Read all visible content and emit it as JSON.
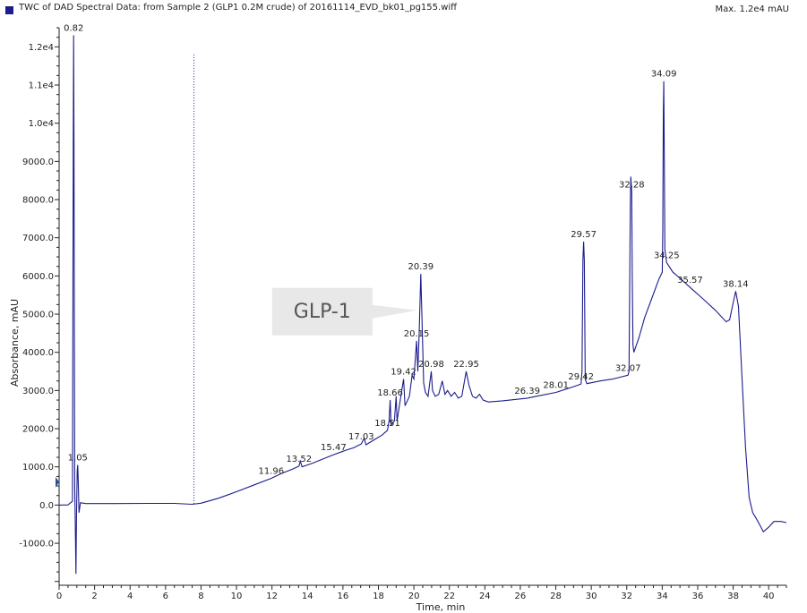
{
  "header": {
    "title": "TWC of DAD Spectral Data: from Sample 2 (GLP1 0.2M crude) of 20161114_EVD_bk01_pg155.wiff",
    "max": "Max. 1.2e4 mAU"
  },
  "chart_data": {
    "type": "line",
    "title": "TWC of DAD Spectral Data: from Sample 2 (GLP1 0.2M crude) of 20161114_EVD_bk01_pg155.wiff",
    "xlabel": "Time, min",
    "ylabel": "Absorbance, mAU",
    "xlim": [
      0,
      41
    ],
    "ylim": [
      -2100,
      12500
    ],
    "x_ticks": [
      0,
      2,
      4,
      6,
      8,
      10,
      12,
      14,
      16,
      18,
      20,
      22,
      24,
      26,
      28,
      30,
      32,
      34,
      36,
      38,
      40
    ],
    "y_ticks": [
      {
        "value": -1000,
        "label": "-1000.0"
      },
      {
        "value": 0,
        "label": "0.0"
      },
      {
        "value": 1000,
        "label": "1000.0"
      },
      {
        "value": 2000,
        "label": "2000.0"
      },
      {
        "value": 3000,
        "label": "3000.0"
      },
      {
        "value": 4000,
        "label": "4000.0"
      },
      {
        "value": 5000,
        "label": "5000.0"
      },
      {
        "value": 6000,
        "label": "6000.0"
      },
      {
        "value": 7000,
        "label": "7000.0"
      },
      {
        "value": 8000,
        "label": "8000.0"
      },
      {
        "value": 9000,
        "label": "9000.0"
      },
      {
        "value": 10000,
        "label": "1.0e4"
      },
      {
        "value": 11000,
        "label": "1.1e4"
      },
      {
        "value": 12000,
        "label": "1.2e4"
      }
    ],
    "series": [
      {
        "name": "TWC",
        "color": "#1c1c8c",
        "points": [
          [
            0,
            0
          ],
          [
            0.5,
            5
          ],
          [
            0.75,
            100
          ],
          [
            0.8,
            9500
          ],
          [
            0.82,
            12300
          ],
          [
            0.84,
            9500
          ],
          [
            0.88,
            500
          ],
          [
            0.91,
            -400
          ],
          [
            0.95,
            -1800
          ],
          [
            0.98,
            -300
          ],
          [
            1.02,
            900
          ],
          [
            1.05,
            1050
          ],
          [
            1.08,
            600
          ],
          [
            1.12,
            -200
          ],
          [
            1.2,
            60
          ],
          [
            1.5,
            40
          ],
          [
            3,
            40
          ],
          [
            5,
            45
          ],
          [
            6.5,
            45
          ],
          [
            7.5,
            20
          ],
          [
            8,
            50
          ],
          [
            9,
            180
          ],
          [
            10,
            350
          ],
          [
            11,
            530
          ],
          [
            11.96,
            700
          ],
          [
            12.5,
            820
          ],
          [
            13.2,
            950
          ],
          [
            13.52,
            1020
          ],
          [
            13.6,
            1150
          ],
          [
            13.7,
            1000
          ],
          [
            14.3,
            1100
          ],
          [
            15,
            1230
          ],
          [
            15.47,
            1320
          ],
          [
            16.2,
            1440
          ],
          [
            16.6,
            1500
          ],
          [
            17.03,
            1600
          ],
          [
            17.2,
            1750
          ],
          [
            17.3,
            1580
          ],
          [
            17.8,
            1720
          ],
          [
            18.2,
            1830
          ],
          [
            18.51,
            1960
          ],
          [
            18.6,
            2200
          ],
          [
            18.66,
            2750
          ],
          [
            18.72,
            2100
          ],
          [
            18.9,
            2200
          ],
          [
            19.0,
            2850
          ],
          [
            19.05,
            2200
          ],
          [
            19.25,
            2800
          ],
          [
            19.42,
            3300
          ],
          [
            19.5,
            2600
          ],
          [
            19.6,
            2700
          ],
          [
            19.75,
            2850
          ],
          [
            19.9,
            3400
          ],
          [
            20.0,
            3300
          ],
          [
            20.15,
            4300
          ],
          [
            20.22,
            3500
          ],
          [
            20.3,
            4500
          ],
          [
            20.39,
            6050
          ],
          [
            20.45,
            5000
          ],
          [
            20.55,
            3200
          ],
          [
            20.65,
            2950
          ],
          [
            20.8,
            2850
          ],
          [
            20.98,
            3500
          ],
          [
            21.05,
            3000
          ],
          [
            21.2,
            2850
          ],
          [
            21.4,
            2900
          ],
          [
            21.6,
            3250
          ],
          [
            21.75,
            2900
          ],
          [
            21.9,
            3000
          ],
          [
            22.1,
            2850
          ],
          [
            22.3,
            2950
          ],
          [
            22.5,
            2800
          ],
          [
            22.7,
            2850
          ],
          [
            22.95,
            3500
          ],
          [
            23.1,
            3150
          ],
          [
            23.3,
            2850
          ],
          [
            23.5,
            2800
          ],
          [
            23.7,
            2900
          ],
          [
            23.9,
            2750
          ],
          [
            24.2,
            2700
          ],
          [
            25,
            2730
          ],
          [
            26.39,
            2800
          ],
          [
            27,
            2860
          ],
          [
            28.01,
            2950
          ],
          [
            29.0,
            3100
          ],
          [
            29.42,
            3170
          ],
          [
            29.48,
            3500
          ],
          [
            29.53,
            6400
          ],
          [
            29.57,
            6900
          ],
          [
            29.61,
            6400
          ],
          [
            29.66,
            3300
          ],
          [
            29.75,
            3180
          ],
          [
            30.5,
            3250
          ],
          [
            31.2,
            3300
          ],
          [
            32.07,
            3400
          ],
          [
            32.13,
            3500
          ],
          [
            32.2,
            7800
          ],
          [
            32.23,
            8600
          ],
          [
            32.28,
            8200
          ],
          [
            32.31,
            6000
          ],
          [
            32.35,
            4200
          ],
          [
            32.4,
            4000
          ],
          [
            32.7,
            4400
          ],
          [
            33.0,
            4900
          ],
          [
            33.4,
            5400
          ],
          [
            33.8,
            5900
          ],
          [
            34.0,
            6100
          ],
          [
            34.03,
            7200
          ],
          [
            34.06,
            10300
          ],
          [
            34.09,
            11100
          ],
          [
            34.12,
            9000
          ],
          [
            34.15,
            6700
          ],
          [
            34.25,
            6350
          ],
          [
            34.6,
            6100
          ],
          [
            35.1,
            5900
          ],
          [
            35.57,
            5700
          ],
          [
            36.3,
            5400
          ],
          [
            37.0,
            5100
          ],
          [
            37.6,
            4800
          ],
          [
            37.8,
            4850
          ],
          [
            38.0,
            5300
          ],
          [
            38.14,
            5600
          ],
          [
            38.3,
            5200
          ],
          [
            38.5,
            3300
          ],
          [
            38.7,
            1500
          ],
          [
            38.9,
            200
          ],
          [
            39.1,
            -200
          ],
          [
            39.3,
            -350
          ],
          [
            39.5,
            -520
          ],
          [
            39.7,
            -700
          ],
          [
            40,
            -580
          ],
          [
            40.3,
            -430
          ],
          [
            40.7,
            -430
          ],
          [
            41,
            -460
          ]
        ]
      }
    ],
    "peak_labels": [
      {
        "time": 0.82,
        "label": "0.82"
      },
      {
        "time": 1.05,
        "label": "1.05"
      },
      {
        "time": 11.96,
        "label": "11.96"
      },
      {
        "time": 13.52,
        "label": "13.52"
      },
      {
        "time": 15.47,
        "label": "15.47"
      },
      {
        "time": 17.03,
        "label": "17.03"
      },
      {
        "time": 18.51,
        "label": "18.51"
      },
      {
        "time": 18.66,
        "label": "18.66"
      },
      {
        "time": 19.42,
        "label": "19.42"
      },
      {
        "time": 20.15,
        "label": "20.15"
      },
      {
        "time": 20.39,
        "label": "20.39"
      },
      {
        "time": 20.98,
        "label": "20.98"
      },
      {
        "time": 22.95,
        "label": "22.95"
      },
      {
        "time": 26.39,
        "label": "26.39"
      },
      {
        "time": 28.01,
        "label": "28.01"
      },
      {
        "time": 29.42,
        "label": "29.42"
      },
      {
        "time": 29.57,
        "label": "29.57"
      },
      {
        "time": 32.07,
        "label": "32.07"
      },
      {
        "time": 32.28,
        "label": "32.28"
      },
      {
        "time": 34.09,
        "label": "34.09"
      },
      {
        "time": 34.25,
        "label": "34.25"
      },
      {
        "time": 35.57,
        "label": "35.57"
      },
      {
        "time": 38.14,
        "label": "38.14"
      }
    ],
    "cursor_time": 7.6,
    "annotation": {
      "text": "GLP-1",
      "target_time": 20.39
    }
  },
  "colors": {
    "trace": "#1c1c8c",
    "axis": "#222222",
    "callout_fill": "#e8e8e8",
    "callout_text": "#555555",
    "marker": "#2a4f9a"
  }
}
